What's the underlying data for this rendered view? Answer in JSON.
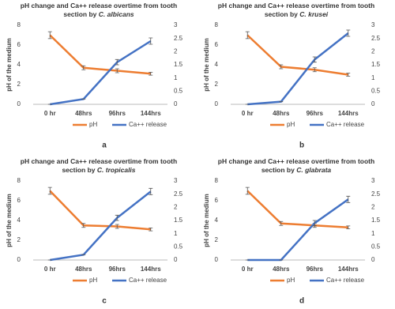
{
  "chart_data": [
    {
      "type": "line",
      "title": "pH change and Ca++ release overtime from tooth section by",
      "organism": "C. albicans",
      "panel_label": "a",
      "categories": [
        "0 hr",
        "48hrs",
        "96hrs",
        "144hrs"
      ],
      "ylabel": "pH of the medium",
      "ylim": [
        0,
        8
      ],
      "yticks": [
        0,
        2,
        4,
        6,
        8
      ],
      "y2lim": [
        0,
        3
      ],
      "y2ticks": [
        0,
        0.5,
        1,
        1.5,
        2,
        2.5,
        3
      ],
      "series": [
        {
          "name": "pH",
          "color": "#ED7D31",
          "values": [
            7.0,
            3.7,
            3.4,
            3.1
          ],
          "errors": [
            0.35,
            0.2,
            0.2,
            0.15
          ]
        },
        {
          "name": "Ca++ release",
          "color": "#4472C4",
          "axis": "y2",
          "values": [
            0,
            0.2,
            1.6,
            2.4
          ],
          "errors": [
            0,
            0,
            0.1,
            0.12
          ]
        }
      ]
    },
    {
      "type": "line",
      "title": "pH change and Ca++ release overtime from tooth section by",
      "organism": "C. krusei",
      "panel_label": "b",
      "categories": [
        "0 hr",
        "48hrs",
        "96hrs",
        "144hrs"
      ],
      "ylabel": "pH of the medium",
      "ylim": [
        0,
        8
      ],
      "yticks": [
        0,
        2,
        4,
        6,
        8
      ],
      "y2lim": [
        0,
        3
      ],
      "y2ticks": [
        0,
        0.5,
        1,
        1.5,
        2,
        2.5,
        3
      ],
      "series": [
        {
          "name": "pH",
          "color": "#ED7D31",
          "values": [
            7.0,
            3.8,
            3.5,
            3.0
          ],
          "errors": [
            0.35,
            0.2,
            0.2,
            0.15
          ]
        },
        {
          "name": "Ca++ release",
          "color": "#4472C4",
          "axis": "y2",
          "values": [
            0,
            0.1,
            1.7,
            2.7
          ],
          "errors": [
            0,
            0,
            0.1,
            0.12
          ]
        }
      ]
    },
    {
      "type": "line",
      "title": "pH change and Ca++ release overtime from tooth section by",
      "organism": "C. tropicalis",
      "panel_label": "c",
      "categories": [
        "0 hr",
        "48hrs",
        "96hrs",
        "144hrs"
      ],
      "ylabel": "pH of the medium",
      "ylim": [
        0,
        8
      ],
      "yticks": [
        0,
        2,
        4,
        6,
        8
      ],
      "y2lim": [
        0,
        3
      ],
      "y2ticks": [
        0,
        0.5,
        1,
        1.5,
        2,
        2.5,
        3
      ],
      "series": [
        {
          "name": "pH",
          "color": "#ED7D31",
          "values": [
            7.0,
            3.5,
            3.4,
            3.1
          ],
          "errors": [
            0.35,
            0.2,
            0.2,
            0.15
          ]
        },
        {
          "name": "Ca++ release",
          "color": "#4472C4",
          "axis": "y2",
          "values": [
            0,
            0.2,
            1.6,
            2.6
          ],
          "errors": [
            0,
            0,
            0.1,
            0.12
          ]
        }
      ]
    },
    {
      "type": "line",
      "title": "pH change and Ca++ release overtime from tooth section by",
      "organism": "C. glabrata",
      "panel_label": "d",
      "categories": [
        "0 hr",
        "48hrs",
        "96hrs",
        "144hrs"
      ],
      "ylabel": "pH of the medium",
      "ylim": [
        0,
        8
      ],
      "yticks": [
        0,
        2,
        4,
        6,
        8
      ],
      "y2lim": [
        0,
        3
      ],
      "y2ticks": [
        0,
        0.5,
        1,
        1.5,
        2,
        2.5,
        3
      ],
      "series": [
        {
          "name": "pH",
          "color": "#ED7D31",
          "values": [
            7.0,
            3.7,
            3.5,
            3.3
          ],
          "errors": [
            0.35,
            0.2,
            0.2,
            0.15
          ]
        },
        {
          "name": "Ca++ release",
          "color": "#4472C4",
          "axis": "y2",
          "values": [
            0,
            0,
            1.4,
            2.3
          ],
          "errors": [
            0,
            0,
            0.1,
            0.12
          ]
        }
      ]
    }
  ]
}
